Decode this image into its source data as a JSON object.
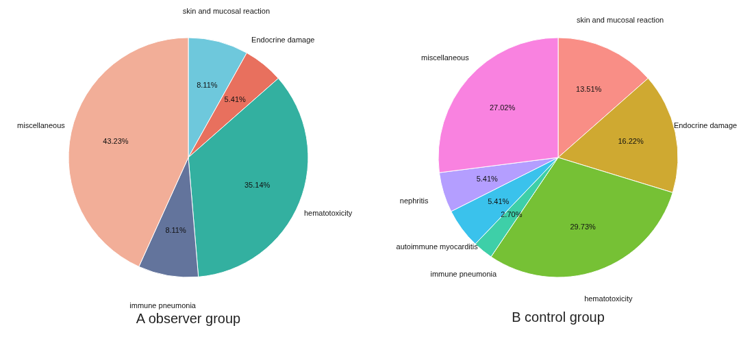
{
  "chart_data": [
    {
      "type": "pie",
      "title": "A   observer group",
      "categories": [
        "skin and mucosal reaction",
        "Endocrine damage",
        "hematotoxicity",
        "immune pneumonia",
        "miscellaneous"
      ],
      "values": [
        8.11,
        5.41,
        35.14,
        8.11,
        43.23
      ],
      "colors": [
        "#6ec8dc",
        "#e8705e",
        "#33b0a0",
        "#63749c",
        "#f2ae98"
      ],
      "value_labels": [
        "8.11%",
        "5.41%",
        "35.14%",
        "8.11%",
        "43.23%"
      ],
      "legend": false
    },
    {
      "type": "pie",
      "title": "B   control  group",
      "categories": [
        "skin and mucosal reaction",
        "Endocrine damage",
        "hematotoxicity",
        "immune pneumonia",
        "autoimmune myocarditis",
        "nephritis",
        "miscellaneous"
      ],
      "values": [
        13.51,
        16.22,
        29.73,
        2.7,
        5.41,
        5.41,
        27.02
      ],
      "colors": [
        "#f98e86",
        "#cfa931",
        "#76c135",
        "#3ecfa8",
        "#3ac2ec",
        "#b49eff",
        "#f982e0"
      ],
      "value_labels": [
        "13.51%",
        "16.22%",
        "29.73%",
        "2.70%",
        "5.41%",
        "5.41%",
        "27.02%"
      ],
      "legend": false
    }
  ]
}
